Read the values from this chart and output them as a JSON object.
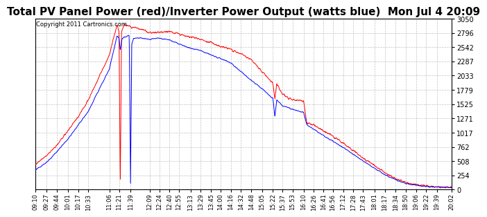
{
  "title": "Total PV Panel Power (red)/Inverter Power Output (watts blue)  Mon Jul 4 20:09",
  "copyright": "Copyright 2011 Cartronics.com",
  "title_fontsize": 11,
  "line_red_color": "#ff0000",
  "line_blue_color": "#0000ff",
  "background_color": "#ffffff",
  "grid_color": "#bbbbbb",
  "grid_style": "--",
  "ymin": 0.0,
  "ymax": 3049.7,
  "yticks": [
    0.0,
    254.1,
    508.3,
    762.4,
    1016.6,
    1270.7,
    1524.9,
    1779.0,
    2033.2,
    2287.3,
    2541.5,
    2795.6,
    3049.7
  ],
  "xtick_labels": [
    "09:10",
    "09:27",
    "09:44",
    "10:01",
    "10:17",
    "10:33",
    "11:06",
    "11:21",
    "11:39",
    "12:09",
    "12:24",
    "12:40",
    "12:55",
    "13:13",
    "13:29",
    "13:45",
    "14:00",
    "14:16",
    "14:32",
    "14:48",
    "15:05",
    "15:22",
    "15:37",
    "15:53",
    "16:10",
    "16:26",
    "16:41",
    "16:56",
    "17:12",
    "17:28",
    "17:43",
    "18:01",
    "18:17",
    "18:34",
    "18:50",
    "19:06",
    "19:22",
    "19:39",
    "20:02"
  ]
}
